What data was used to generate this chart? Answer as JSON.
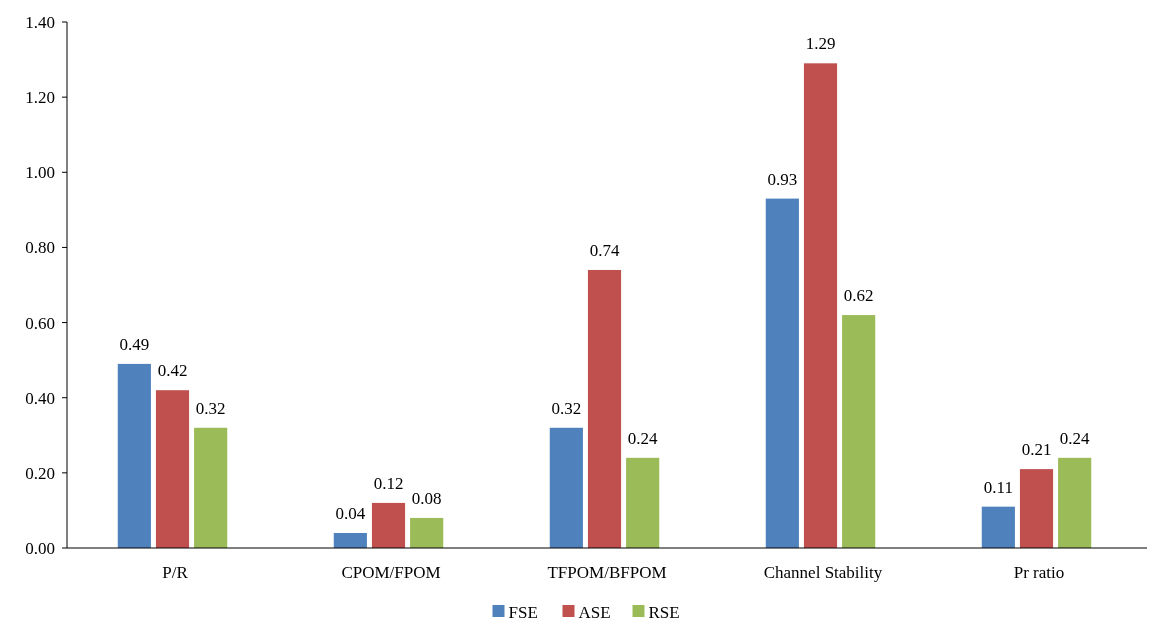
{
  "chart_data": {
    "type": "bar",
    "categories": [
      "P/R",
      "CPOM/FPOM",
      "TFPOM/BFPOM",
      "Channel Stability",
      "Pr ratio"
    ],
    "series": [
      {
        "name": "FSE",
        "color": "#4f81bd",
        "values": [
          0.49,
          0.04,
          0.32,
          0.93,
          0.11
        ]
      },
      {
        "name": "ASE",
        "color": "#c0504d",
        "values": [
          0.42,
          0.12,
          0.74,
          1.29,
          0.21
        ]
      },
      {
        "name": "RSE",
        "color": "#9bbb59",
        "values": [
          0.32,
          0.08,
          0.24,
          0.62,
          0.24
        ]
      }
    ],
    "ylim": [
      0,
      1.4
    ],
    "yticks": [
      {
        "value": 0,
        "label": "0.00"
      },
      {
        "value": 0.2,
        "label": "0.20"
      },
      {
        "value": 0.4,
        "label": "0.40"
      },
      {
        "value": 0.6,
        "label": "0.60"
      },
      {
        "value": 0.8,
        "label": "0.80"
      },
      {
        "value": 1,
        "label": "1.00"
      },
      {
        "value": 1.2,
        "label": "1.20"
      },
      {
        "value": 1.4,
        "label": "1.40"
      }
    ],
    "data_labels": true,
    "legend": "bottom",
    "grid": false
  }
}
